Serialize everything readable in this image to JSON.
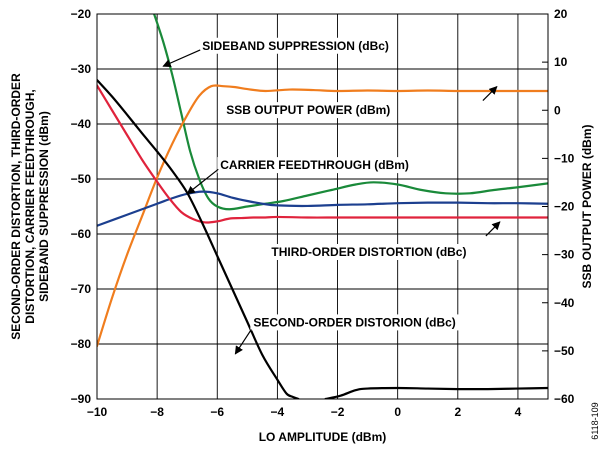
{
  "chart_data": {
    "type": "line",
    "xlabel": "LO AMPLITUDE (dBm)",
    "ylabel_left": [
      "SECOND-ORDER DISTORTION, THIRD-ORDER",
      "DISTORTION, CARRIER FEEDTHROUGH,",
      "SIDEBAND SUPPRESSION (dBm)"
    ],
    "ylabel_right": "SSB OUTPUT POWER (dBm)",
    "xlim": [
      -10,
      5
    ],
    "ylim_left": [
      -90,
      -20
    ],
    "ylim_right": [
      -60,
      20
    ],
    "x_ticks": [
      -10,
      -8,
      -6,
      -4,
      -2,
      0,
      2,
      4
    ],
    "y_ticks_left": [
      -90,
      -80,
      -70,
      -60,
      -50,
      -40,
      -30,
      -20
    ],
    "y_ticks_right": [
      -60,
      -50,
      -40,
      -30,
      -20,
      -10,
      0,
      10,
      20
    ],
    "grid": true,
    "figure_id": "6118-109",
    "series": [
      {
        "name": "SIDEBAND SUPPRESSION (dBc)",
        "axis": "left",
        "color": "#1a8a3a",
        "x": [
          -8.1,
          -7.8,
          -7.5,
          -7.2,
          -6.9,
          -6.6,
          -6.3,
          -6.0,
          -5.6,
          -5.0,
          -4.4,
          -3.8,
          -3.0,
          -2.2,
          -1.4,
          -0.8,
          0.0,
          0.8,
          1.6,
          2.4,
          3.2,
          4.0,
          5.0
        ],
        "y": [
          -20.0,
          -25.0,
          -31.0,
          -38.0,
          -45.0,
          -50.0,
          -53.5,
          -55.0,
          -55.5,
          -55.0,
          -54.5,
          -54.0,
          -53.0,
          -52.0,
          -51.0,
          -50.6,
          -51.0,
          -52.0,
          -52.6,
          -52.6,
          -52.0,
          -51.5,
          -50.8
        ]
      },
      {
        "name": "SSB OUTPUT POWER (dBm)",
        "axis": "right",
        "color": "#f07d1e",
        "x": [
          -10.0,
          -9.5,
          -9.0,
          -8.5,
          -8.0,
          -7.5,
          -7.0,
          -6.6,
          -6.2,
          -5.8,
          -5.4,
          -5.0,
          -4.4,
          -3.6,
          -2.8,
          -2.0,
          -1.0,
          0.0,
          1.0,
          2.0,
          3.0,
          4.0,
          5.0
        ],
        "y": [
          -49.0,
          -39.0,
          -30.0,
          -22.0,
          -14.0,
          -7.0,
          -1.0,
          3.0,
          5.0,
          5.0,
          4.8,
          4.4,
          4.0,
          4.3,
          4.2,
          4.0,
          4.1,
          4.0,
          4.1,
          4.0,
          4.0,
          4.0,
          4.0
        ]
      },
      {
        "name": "CARRIER FEEDTHROUGH (dBm)",
        "axis": "left",
        "color": "#1c3f8f",
        "x": [
          -10.0,
          -9.0,
          -8.0,
          -7.5,
          -7.0,
          -6.5,
          -6.0,
          -5.5,
          -5.0,
          -4.5,
          -4.0,
          -3.0,
          -2.0,
          -1.0,
          0.0,
          1.0,
          2.0,
          3.0,
          4.0,
          5.0
        ],
        "y": [
          -58.5,
          -56.5,
          -54.5,
          -53.5,
          -52.7,
          -52.3,
          -52.6,
          -53.4,
          -54.0,
          -54.5,
          -54.8,
          -54.9,
          -54.7,
          -54.6,
          -54.4,
          -54.3,
          -54.3,
          -54.4,
          -54.4,
          -54.5
        ]
      },
      {
        "name": "THIRD-ORDER DISTORTION (dBc)",
        "axis": "left",
        "color": "#e0233c",
        "x": [
          -10.0,
          -9.5,
          -9.0,
          -8.5,
          -8.0,
          -7.6,
          -7.2,
          -6.8,
          -6.4,
          -6.0,
          -5.6,
          -5.2,
          -4.8,
          -4.4,
          -4.0,
          -3.0,
          -2.0,
          -1.0,
          0.0,
          1.0,
          2.0,
          3.0,
          4.0,
          5.0
        ],
        "y": [
          -33.0,
          -37.5,
          -42.0,
          -46.5,
          -50.5,
          -53.5,
          -56.0,
          -57.3,
          -57.9,
          -57.7,
          -57.2,
          -57.1,
          -57.0,
          -57.0,
          -56.9,
          -57.0,
          -57.0,
          -57.0,
          -57.0,
          -57.0,
          -57.0,
          -57.0,
          -57.0,
          -57.0
        ]
      },
      {
        "name": "SECOND-ORDER DISTORION (dBc)",
        "axis": "left",
        "color": "#000000",
        "x": [
          -10.0,
          -9.5,
          -9.0,
          -8.5,
          -8.0,
          -7.5,
          -7.0,
          -6.5,
          -6.0,
          -5.5,
          -5.0,
          -4.5,
          -4.0,
          -3.7,
          -3.5,
          -3.3
        ],
        "y": [
          -32.0,
          -35.0,
          -38.3,
          -41.7,
          -45.0,
          -48.5,
          -52.5,
          -58.0,
          -64.0,
          -70.0,
          -76.0,
          -82.0,
          -86.5,
          -89.0,
          -89.6,
          -90.0
        ]
      },
      {
        "name": "SECOND-ORDER DISTORION (dBc) tail",
        "label_ref": "SECOND-ORDER DISTORION (dBc)",
        "axis": "left",
        "color": "#000000",
        "x": [
          -2.4,
          -1.9,
          -1.4,
          -1.0,
          0.0,
          1.0,
          2.0,
          3.0,
          4.0,
          5.0
        ],
        "y": [
          -90.0,
          -89.4,
          -88.4,
          -88.1,
          -88.0,
          -88.1,
          -88.2,
          -88.2,
          -88.1,
          -88.0
        ]
      }
    ],
    "annotations": [
      {
        "text": "SIDEBAND SUPPRESSION (dBc)",
        "x": -6.5,
        "y": -26.5,
        "arrow_to": [
          -7.8,
          -29.5
        ]
      },
      {
        "text": "SSB OUTPUT POWER (dBm)",
        "x": -5.7,
        "y": -38.2,
        "arrow_to": [
          3.3,
          -33.2
        ]
      },
      {
        "text": "CARRIER FEEDTHROUGH (dBm)",
        "x": -5.9,
        "y": -48.2,
        "arrow_to": [
          -7.0,
          -52.7
        ]
      },
      {
        "text": "THIRD-ORDER DISTORTION (dBc)",
        "x": -4.2,
        "y": -64.0,
        "arrow_to": [
          3.4,
          -57.8
        ]
      },
      {
        "text": "SECOND-ORDER DISTORION (dBc)",
        "x": -4.8,
        "y": -76.8,
        "arrow_to": [
          -5.4,
          -81.8
        ]
      }
    ]
  }
}
